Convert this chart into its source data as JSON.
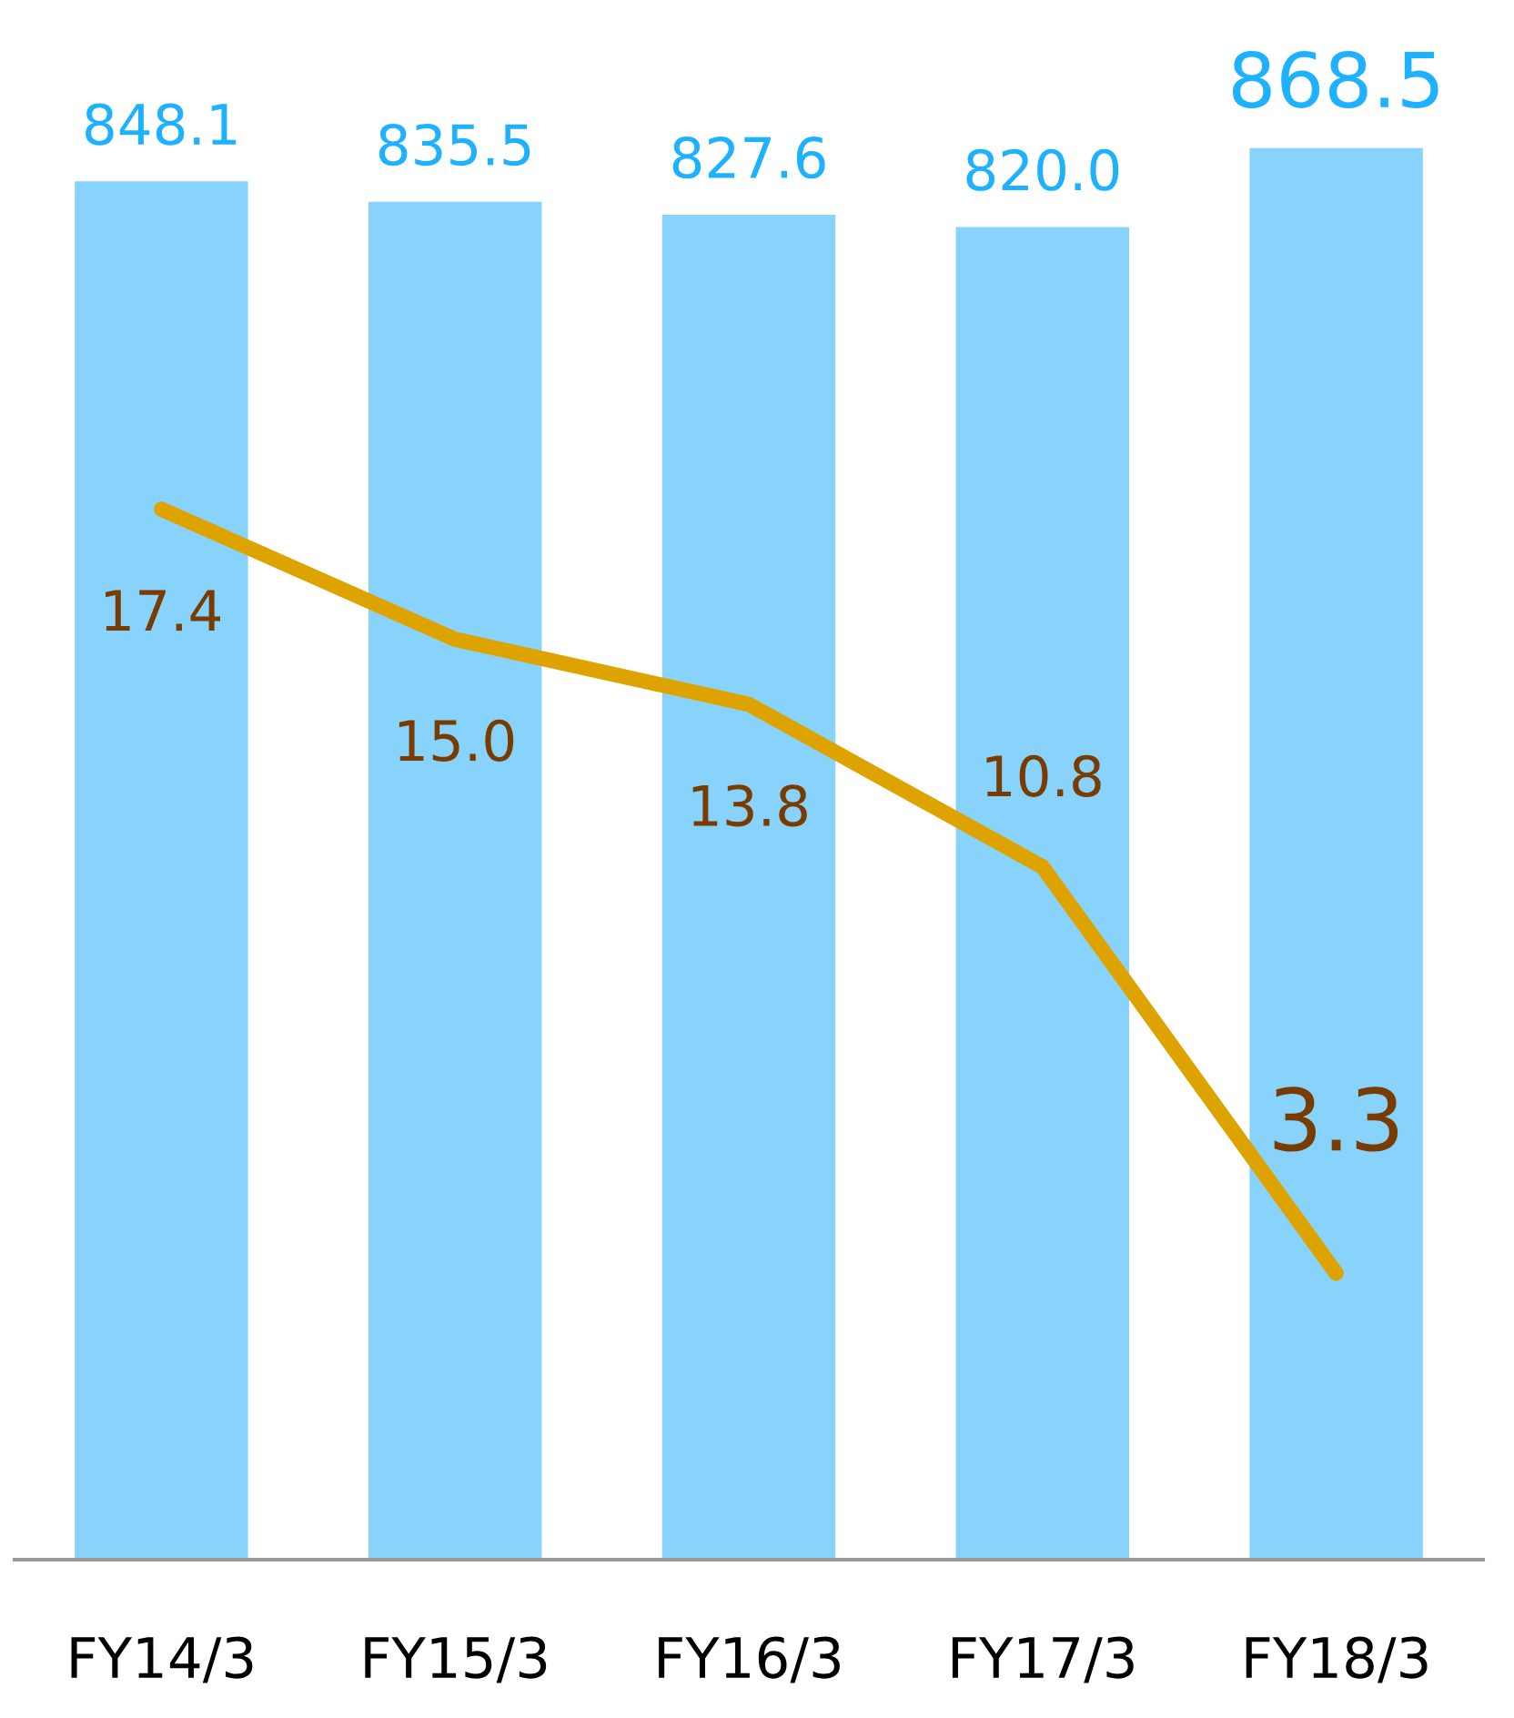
{
  "chart_data": {
    "type": "bar",
    "categories": [
      "FY14/3",
      "FY15/3",
      "FY16/3",
      "FY17/3",
      "FY18/3"
    ],
    "series": [
      {
        "color": "#87d3fb",
        "values": [
          848.1,
          835.5,
          827.6,
          820.0,
          868.5
        ],
        "value_labels": [
          "848.1",
          "835.5",
          "827.6",
          "820.0",
          "868.5"
        ]
      },
      {
        "type": "line",
        "axis": "y2",
        "color": "#dfa300",
        "values": [
          17.4,
          15.0,
          13.8,
          10.8,
          3.3
        ],
        "value_labels": [
          "17.4",
          "15.0",
          "13.8",
          "10.8",
          "3.3"
        ]
      }
    ],
    "grid": false,
    "legend": false,
    "marker": "none",
    "line_style": "solid",
    "tick_labels": "x"
  }
}
